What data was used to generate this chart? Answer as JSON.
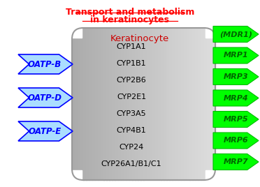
{
  "title_line1": "Transport and metabolism",
  "title_line2": "in keratinocytes",
  "title_color": "#ff0000",
  "cell_label": "Keratinocyte",
  "cell_label_color": "#cc0000",
  "cyp_labels": [
    "CYP1A1",
    "CYP1B1",
    "CYP2B6",
    "CYP2E1",
    "CYP3A5",
    "CYP4B1",
    "CYP24",
    "CYP26A1/B1/C1"
  ],
  "oatp_labels": [
    "OATP-B",
    "OATP-D",
    "OATP-E"
  ],
  "mrp_labels": [
    "(MDR1)",
    "MRP1",
    "MRP3",
    "MRP4",
    "MRP5",
    "MRP6",
    "MRP7"
  ],
  "oatp_color": "#aaddff",
  "oatp_border_color": "#0000ff",
  "mrp_color": "#00ff00",
  "mrp_text_color": "#006600",
  "figsize": [
    3.72,
    2.68
  ],
  "dpi": 100
}
